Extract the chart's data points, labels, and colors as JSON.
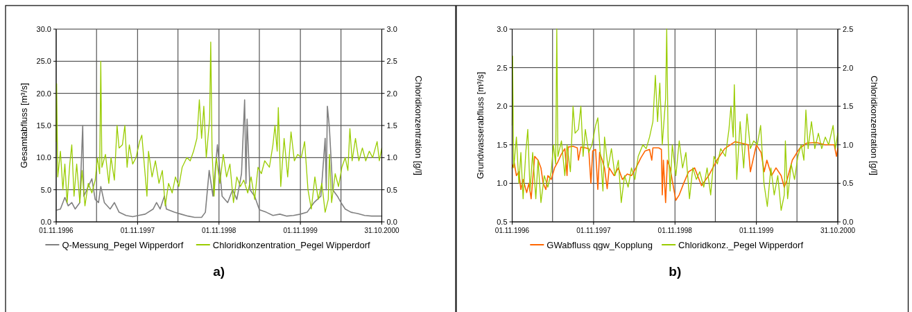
{
  "chart_data": [
    {
      "type": "line",
      "title": "a)",
      "ylabel": "Gesamtabfluss [m³/s]",
      "y2label": "Chloridkonzentration [g/l]",
      "xlim": [
        "1996-11-01",
        "2000-10-31"
      ],
      "xticks": [
        {
          "value": "1996-11-01",
          "label": "01.11.1996"
        },
        {
          "value": "1997-05-01",
          "label": null
        },
        {
          "value": "1997-11-01",
          "label": "01.11.1997"
        },
        {
          "value": "1998-05-01",
          "label": null
        },
        {
          "value": "1998-11-01",
          "label": "01.11.1998"
        },
        {
          "value": "1999-05-01",
          "label": null
        },
        {
          "value": "1999-11-01",
          "label": "01.11.1999"
        },
        {
          "value": "2000-05-01",
          "label": null
        },
        {
          "value": "2000-10-31",
          "label": "31.10.2000"
        }
      ],
      "ylim": [
        0,
        30
      ],
      "yticks": [
        {
          "value": 0,
          "label": "0.0"
        },
        {
          "value": 5,
          "label": "5.0"
        },
        {
          "value": 10,
          "label": "10.0"
        },
        {
          "value": 15,
          "label": "15.0"
        },
        {
          "value": 20,
          "label": "20.0"
        },
        {
          "value": 25,
          "label": "25.0"
        },
        {
          "value": 30,
          "label": "30.0"
        }
      ],
      "y2lim": [
        0,
        3
      ],
      "y2ticks": [
        {
          "value": 0,
          "label": "0.0"
        },
        {
          "value": 0.5,
          "label": "0.5"
        },
        {
          "value": 1,
          "label": "1.0"
        },
        {
          "value": 1.5,
          "label": "1.5"
        },
        {
          "value": 2,
          "label": "2.0"
        },
        {
          "value": 2.5,
          "label": "2.5"
        },
        {
          "value": 3,
          "label": "3.0"
        }
      ],
      "grid": true,
      "legend": "bottom",
      "series": [
        {
          "name": "Q-Messung_Pegel Wipperdorf",
          "color": "#808080",
          "axis": "y",
          "x": [
            "1996-11-01",
            "1996-11-20",
            "1996-12-10",
            "1996-12-25",
            "1997-01-10",
            "1997-01-25",
            "1997-02-15",
            "1997-02-28",
            "1997-03-05",
            "1997-03-25",
            "1997-04-10",
            "1997-04-25",
            "1997-05-10",
            "1997-05-20",
            "1997-06-05",
            "1997-07-01",
            "1997-07-20",
            "1997-08-10",
            "1997-09-10",
            "1997-10-10",
            "1997-11-05",
            "1997-12-05",
            "1998-01-10",
            "1998-01-25",
            "1998-02-10",
            "1998-03-01",
            "1998-03-10",
            "1998-04-15",
            "1998-05-15",
            "1998-06-15",
            "1998-07-15",
            "1998-08-15",
            "1998-09-01",
            "1998-09-18",
            "1998-10-05",
            "1998-10-25",
            "1998-11-15",
            "1998-12-10",
            "1999-01-01",
            "1999-01-20",
            "1999-02-10",
            "1999-02-24",
            "1999-03-02",
            "1999-03-07",
            "1999-03-20",
            "1999-04-10",
            "1999-05-01",
            "1999-06-01",
            "1999-07-01",
            "1999-08-01",
            "1999-09-01",
            "1999-10-01",
            "1999-11-01",
            "1999-12-01",
            "2000-01-01",
            "2000-02-01",
            "2000-02-20",
            "2000-02-25",
            "2000-03-01",
            "2000-03-10",
            "2000-03-25",
            "2000-04-15",
            "2000-05-01",
            "2000-05-20",
            "2000-06-15",
            "2000-07-15",
            "2000-08-15",
            "2000-09-15",
            "2000-10-31"
          ],
          "values": [
            1.8,
            2.0,
            3.8,
            2.5,
            3.0,
            2.0,
            3.0,
            15,
            4,
            5.5,
            6.7,
            3.5,
            3.0,
            5.5,
            3.0,
            2.0,
            3.0,
            1.5,
            1.0,
            0.8,
            1.0,
            1.2,
            2.0,
            3.0,
            2.0,
            4.0,
            2.0,
            1.5,
            1.2,
            0.9,
            0.7,
            0.7,
            1.5,
            8.0,
            4.0,
            12.0,
            4.0,
            3.0,
            5.0,
            3.5,
            7.5,
            19,
            6,
            16,
            5,
            4,
            1.9,
            1.5,
            1.0,
            1.2,
            0.9,
            1.0,
            1.2,
            1.5,
            3.0,
            4.0,
            13,
            5,
            18,
            14.7,
            5,
            4,
            3,
            2,
            1.5,
            1.3,
            1.0,
            0.9,
            0.9
          ]
        },
        {
          "name": "Chloridkonzentration_Pegel Wipperdorf",
          "color": "#99cc00",
          "axis": "y2",
          "x": [
            "1996-11-01",
            "1996-11-03",
            "1996-11-08",
            "1996-11-20",
            "1996-12-01",
            "1996-12-10",
            "1996-12-20",
            "1997-01-01",
            "1997-01-10",
            "1997-01-20",
            "1997-02-01",
            "1997-02-15",
            "1997-02-25",
            "1997-03-10",
            "1997-03-25",
            "1997-04-10",
            "1997-04-25",
            "1997-05-05",
            "1997-05-15",
            "1997-05-20",
            "1997-05-25",
            "1997-06-10",
            "1997-06-25",
            "1997-07-05",
            "1997-07-20",
            "1997-08-01",
            "1997-08-10",
            "1997-08-25",
            "1997-09-05",
            "1997-09-15",
            "1997-09-25",
            "1997-10-10",
            "1997-10-25",
            "1997-11-10",
            "1997-11-20",
            "1997-12-13",
            "1997-12-20",
            "1998-01-05",
            "1998-01-20",
            "1998-02-05",
            "1998-02-20",
            "1998-03-05",
            "1998-03-20",
            "1998-04-05",
            "1998-04-20",
            "1998-05-05",
            "1998-05-20",
            "1998-06-10",
            "1998-06-25",
            "1998-07-10",
            "1998-07-25",
            "1998-08-05",
            "1998-08-15",
            "1998-08-25",
            "1998-09-05",
            "1998-09-20",
            "1998-09-25",
            "1998-10-01",
            "1998-10-10",
            "1998-10-20",
            "1998-11-05",
            "1998-11-20",
            "1998-12-05",
            "1998-12-20",
            "1999-01-05",
            "1999-01-20",
            "1999-02-05",
            "1999-02-20",
            "1999-03-10",
            "1999-03-25",
            "1999-04-10",
            "1999-04-25",
            "1999-05-10",
            "1999-05-25",
            "1999-06-15",
            "1999-07-01",
            "1999-07-10",
            "1999-07-20",
            "1999-07-25",
            "1999-08-05",
            "1999-08-20",
            "1999-09-05",
            "1999-09-20",
            "1999-10-05",
            "1999-10-20",
            "1999-11-05",
            "1999-11-20",
            "1999-12-05",
            "1999-12-20",
            "2000-01-05",
            "2000-01-20",
            "2000-02-05",
            "2000-02-20",
            "2000-03-05",
            "2000-03-10",
            "2000-03-20",
            "2000-04-05",
            "2000-04-20",
            "2000-05-05",
            "2000-05-20",
            "2000-06-01",
            "2000-06-10",
            "2000-06-20",
            "2000-07-05",
            "2000-07-20",
            "2000-08-05",
            "2000-08-20",
            "2000-09-05",
            "2000-09-20",
            "2000-10-10",
            "2000-10-20",
            "2000-10-31"
          ],
          "values": [
            1.25,
            2.15,
            0.7,
            1.1,
            0.5,
            0.9,
            0.3,
            0.9,
            1.2,
            0.4,
            0.9,
            0.3,
            0.8,
            0.25,
            0.6,
            0.45,
            0.65,
            1.0,
            0.75,
            2.5,
            0.85,
            1.05,
            0.6,
            1.0,
            0.65,
            1.5,
            1.15,
            1.2,
            1.5,
            0.85,
            1.2,
            0.9,
            1.0,
            1.25,
            1.35,
            0.4,
            1.1,
            0.7,
            0.95,
            0.6,
            0.8,
            0.25,
            0.6,
            0.45,
            0.7,
            0.55,
            0.85,
            1.0,
            0.95,
            1.1,
            1.3,
            1.9,
            1.3,
            1.8,
            1.0,
            1.6,
            2.8,
            1.1,
            0.4,
            1.0,
            0.6,
            1.05,
            0.7,
            0.9,
            0.3,
            0.7,
            0.55,
            0.65,
            0.45,
            0.7,
            0.35,
            0.85,
            0.75,
            0.95,
            0.85,
            1.2,
            1.5,
            1.1,
            1.78,
            0.55,
            1.3,
            0.7,
            1.4,
            0.95,
            1.05,
            1.0,
            1.25,
            0.5,
            0.2,
            0.7,
            0.35,
            0.6,
            0.15,
            0.35,
            1.05,
            0.3,
            0.75,
            0.55,
            0.85,
            1.0,
            0.8,
            1.45,
            0.95,
            1.3,
            0.95,
            1.15,
            0.95,
            1.1,
            1.0,
            1.25,
            0.95,
            1.15
          ]
        }
      ]
    },
    {
      "type": "line",
      "title": "b)",
      "ylabel": "Grundwasserabfluss [m³/s]",
      "y2label": "Chloridkonzentration [g/l]",
      "xlim": [
        "1996-11-01",
        "2000-10-31"
      ],
      "xticks": [
        {
          "value": "1996-11-01",
          "label": "01.11.1996"
        },
        {
          "value": "1997-05-01",
          "label": null
        },
        {
          "value": "1997-11-01",
          "label": "01.11.1997"
        },
        {
          "value": "1998-05-01",
          "label": null
        },
        {
          "value": "1998-11-01",
          "label": "01.11.1998"
        },
        {
          "value": "1999-05-01",
          "label": null
        },
        {
          "value": "1999-11-01",
          "label": "01.11.1999"
        },
        {
          "value": "2000-05-01",
          "label": null
        },
        {
          "value": "2000-10-31",
          "label": "31.10.2000"
        }
      ],
      "ylim": [
        0.5,
        3
      ],
      "yticks": [
        {
          "value": 0.5,
          "label": "0.5"
        },
        {
          "value": 1,
          "label": "1.0"
        },
        {
          "value": 1.5,
          "label": "1.5"
        },
        {
          "value": 2,
          "label": "2.0"
        },
        {
          "value": 2.5,
          "label": "2.5"
        },
        {
          "value": 3,
          "label": "3.0"
        }
      ],
      "y2lim": [
        0,
        2.5
      ],
      "y2ticks": [
        {
          "value": 0,
          "label": "0.0"
        },
        {
          "value": 0.5,
          "label": "0.5"
        },
        {
          "value": 1,
          "label": "1.0"
        },
        {
          "value": 1.5,
          "label": "1.5"
        },
        {
          "value": 2,
          "label": "2.0"
        },
        {
          "value": 2.5,
          "label": "2.5"
        }
      ],
      "grid": true,
      "legend": "bottom",
      "series": [
        {
          "name": "GWabfluss qgw_Kopplung",
          "color": "#ff6600",
          "axis": "y",
          "x": [
            "1996-11-01",
            "1996-11-10",
            "1996-11-20",
            "1996-12-01",
            "1996-12-10",
            "1996-12-20",
            "1997-01-05",
            "1997-01-15",
            "1997-01-25",
            "1997-02-10",
            "1997-02-25",
            "1997-03-10",
            "1997-03-20",
            "1997-04-01",
            "1997-04-10",
            "1997-04-25",
            "1997-05-10",
            "1997-05-25",
            "1997-06-10",
            "1997-06-25",
            "1997-07-05",
            "1997-07-10",
            "1997-08-01",
            "1997-08-20",
            "1997-08-25",
            "1997-09-05",
            "1997-09-25",
            "1997-10-10",
            "1997-10-20",
            "1997-10-28",
            "1997-11-10",
            "1997-11-20",
            "1997-11-28",
            "1997-12-10",
            "1997-12-20",
            "1998-01-01",
            "1998-01-10",
            "1998-02-01",
            "1998-02-20",
            "1998-03-10",
            "1998-04-01",
            "1998-04-20",
            "1998-05-10",
            "1998-06-01",
            "1998-06-20",
            "1998-07-10",
            "1998-07-20",
            "1998-07-25",
            "1998-08-20",
            "1998-09-01",
            "1998-09-05",
            "1998-09-10",
            "1998-09-20",
            "1998-09-28",
            "1998-10-10",
            "1998-10-25",
            "1998-11-05",
            "1998-11-20",
            "1998-12-10",
            "1999-01-01",
            "1999-01-28",
            "1999-02-28",
            "1999-04-01",
            "1999-05-10",
            "1999-06-12",
            "1999-07-28",
            "1999-08-25",
            "1999-09-25",
            "1999-10-05",
            "1999-11-01",
            "1999-11-22",
            "1999-12-06",
            "1999-12-18",
            "2000-01-08",
            "2000-01-28",
            "2000-02-20",
            "2000-03-05",
            "2000-03-18",
            "2000-04-10",
            "2000-05-12",
            "2000-06-12",
            "2000-07-25",
            "2000-09-03",
            "2000-10-15",
            "2000-10-25",
            "2000-10-31"
          ],
          "values": [
            1.2,
            1.27,
            1.1,
            1.15,
            0.92,
            1.05,
            0.88,
            1.0,
            0.8,
            1.35,
            1.3,
            1.2,
            1.0,
            0.92,
            1.1,
            1.05,
            1.2,
            1.28,
            1.38,
            1.45,
            1.1,
            1.47,
            1.48,
            1.46,
            1.3,
            1.47,
            1.46,
            1.45,
            1.0,
            1.42,
            1.44,
            0.92,
            1.4,
            1.3,
            1.2,
            0.93,
            1.2,
            1.1,
            1.2,
            1.05,
            1.12,
            1.1,
            1.2,
            1.33,
            1.42,
            1.44,
            1.3,
            1.46,
            1.46,
            1.44,
            0.85,
            1.3,
            0.75,
            1.3,
            1.2,
            0.95,
            0.78,
            0.85,
            1.0,
            1.15,
            1.2,
            0.97,
            1.1,
            1.31,
            1.45,
            1.54,
            1.52,
            1.5,
            1.15,
            1.5,
            1.4,
            1.15,
            1.3,
            1.1,
            1.2,
            1.1,
            0.95,
            1.05,
            1.3,
            1.45,
            1.52,
            1.53,
            1.5,
            1.5,
            1.35,
            1.45
          ]
        },
        {
          "name": "Chloridkonz._Pegel Wipperdorf",
          "color": "#99cc00",
          "axis": "y2",
          "x": [
            "1996-11-01",
            "1996-11-03",
            "1996-11-08",
            "1996-11-20",
            "1996-12-01",
            "1996-12-10",
            "1996-12-20",
            "1997-01-01",
            "1997-01-10",
            "1997-01-20",
            "1997-02-01",
            "1997-02-15",
            "1997-02-25",
            "1997-03-10",
            "1997-03-25",
            "1997-04-10",
            "1997-04-25",
            "1997-05-05",
            "1997-05-15",
            "1997-05-20",
            "1997-05-25",
            "1997-06-10",
            "1997-06-25",
            "1997-07-05",
            "1997-07-20",
            "1997-08-01",
            "1997-08-10",
            "1997-08-25",
            "1997-09-05",
            "1997-09-15",
            "1997-09-25",
            "1997-10-10",
            "1997-10-25",
            "1997-11-10",
            "1997-11-20",
            "1997-12-13",
            "1997-12-20",
            "1998-01-05",
            "1998-01-20",
            "1998-02-05",
            "1998-02-20",
            "1998-03-05",
            "1998-03-20",
            "1998-04-05",
            "1998-04-20",
            "1998-05-05",
            "1998-05-20",
            "1998-06-10",
            "1998-06-25",
            "1998-07-10",
            "1998-07-25",
            "1998-08-05",
            "1998-08-15",
            "1998-08-25",
            "1998-09-05",
            "1998-09-20",
            "1998-09-25",
            "1998-10-01",
            "1998-10-10",
            "1998-10-20",
            "1998-11-05",
            "1998-11-20",
            "1998-12-05",
            "1998-12-20",
            "1999-01-05",
            "1999-01-20",
            "1999-02-05",
            "1999-02-20",
            "1999-03-10",
            "1999-03-25",
            "1999-04-10",
            "1999-04-25",
            "1999-05-10",
            "1999-05-25",
            "1999-06-15",
            "1999-07-01",
            "1999-07-10",
            "1999-07-20",
            "1999-07-25",
            "1999-08-05",
            "1999-08-20",
            "1999-09-05",
            "1999-09-20",
            "1999-10-05",
            "1999-10-20",
            "1999-11-05",
            "1999-11-20",
            "1999-12-05",
            "1999-12-20",
            "2000-01-05",
            "2000-01-20",
            "2000-02-05",
            "2000-02-20",
            "2000-03-05",
            "2000-03-10",
            "2000-03-20",
            "2000-04-05",
            "2000-04-20",
            "2000-05-05",
            "2000-05-20",
            "2000-06-01",
            "2000-06-10",
            "2000-06-20",
            "2000-07-05",
            "2000-07-20",
            "2000-08-05",
            "2000-08-20",
            "2000-09-05",
            "2000-09-20",
            "2000-10-10",
            "2000-10-20",
            "2000-10-31"
          ],
          "values": [
            1.25,
            2.15,
            0.7,
            1.1,
            0.5,
            0.9,
            0.3,
            0.9,
            1.2,
            0.4,
            0.9,
            0.3,
            0.8,
            0.25,
            0.6,
            0.45,
            0.65,
            1.0,
            0.75,
            2.5,
            0.85,
            1.05,
            0.6,
            1.0,
            0.65,
            1.5,
            1.15,
            1.2,
            1.5,
            0.85,
            1.2,
            0.9,
            1.0,
            1.25,
            1.35,
            0.4,
            1.1,
            0.7,
            0.95,
            0.6,
            0.8,
            0.25,
            0.6,
            0.45,
            0.7,
            0.55,
            0.85,
            1.0,
            0.95,
            1.1,
            1.3,
            1.9,
            1.3,
            1.8,
            1.0,
            1.6,
            2.5,
            1.1,
            0.4,
            1.0,
            0.6,
            1.05,
            0.7,
            0.9,
            0.3,
            0.7,
            0.55,
            0.65,
            0.45,
            0.7,
            0.35,
            0.85,
            0.75,
            0.95,
            0.85,
            1.2,
            1.5,
            1.1,
            1.78,
            0.55,
            1.3,
            0.7,
            1.4,
            0.95,
            1.05,
            1.0,
            1.25,
            0.5,
            0.2,
            0.7,
            0.35,
            0.6,
            0.15,
            0.35,
            1.05,
            0.3,
            0.75,
            0.55,
            0.85,
            1.0,
            0.8,
            1.45,
            0.95,
            1.3,
            0.95,
            1.15,
            0.95,
            1.1,
            1.0,
            1.25,
            0.95,
            1.15
          ]
        }
      ]
    }
  ]
}
